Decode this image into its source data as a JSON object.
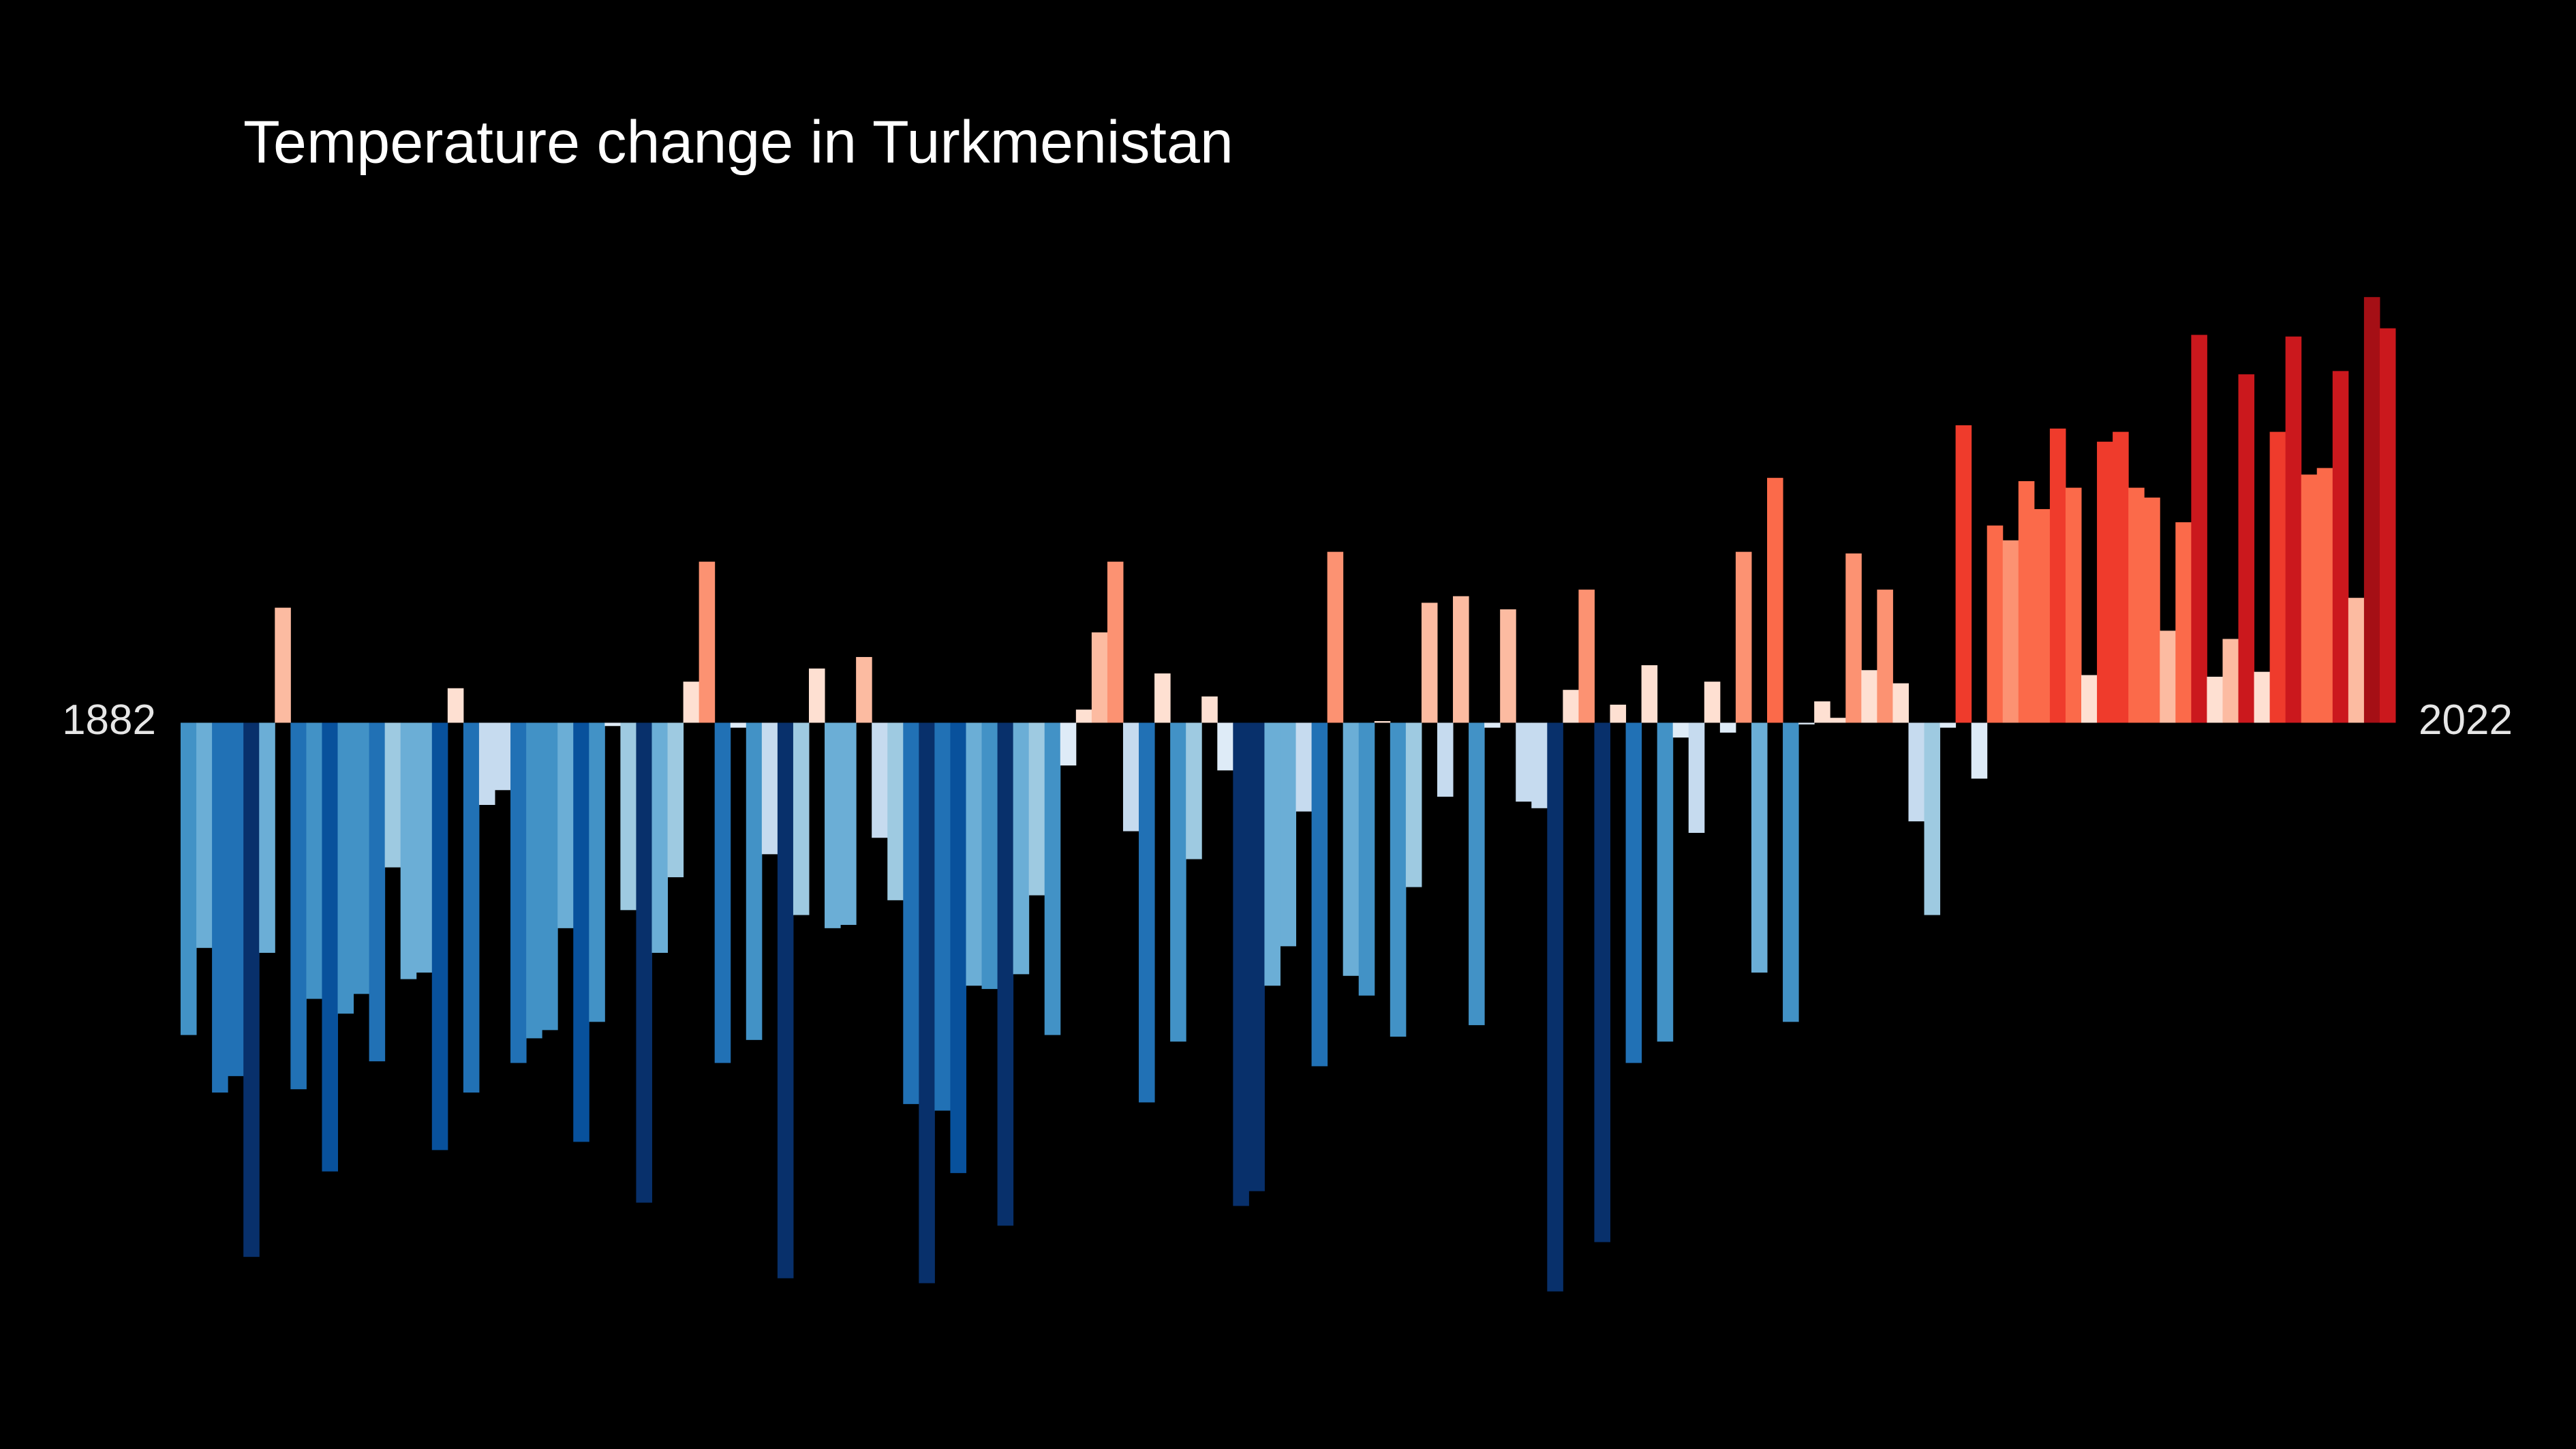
{
  "chart_data": {
    "type": "bar",
    "title": "Temperature change in Turkmenistan",
    "categories": [
      "1882",
      null,
      null,
      null,
      null,
      null,
      null,
      null,
      null,
      null,
      null,
      null,
      null,
      null,
      null,
      null,
      null,
      null,
      null,
      null,
      null,
      null,
      null,
      null,
      null,
      null,
      null,
      null,
      null,
      null,
      null,
      null,
      null,
      null,
      null,
      null,
      null,
      null,
      null,
      null,
      null,
      null,
      null,
      null,
      null,
      null,
      null,
      null,
      null,
      null,
      null,
      null,
      null,
      null,
      null,
      null,
      null,
      null,
      null,
      null,
      null,
      null,
      null,
      null,
      null,
      null,
      null,
      null,
      null,
      null,
      null,
      null,
      null,
      null,
      null,
      null,
      null,
      null,
      null,
      null,
      null,
      null,
      null,
      null,
      null,
      null,
      null,
      null,
      null,
      null,
      null,
      null,
      null,
      null,
      null,
      null,
      null,
      null,
      null,
      null,
      null,
      null,
      null,
      null,
      null,
      null,
      null,
      null,
      null,
      null,
      null,
      null,
      null,
      null,
      null,
      null,
      null,
      null,
      null,
      null,
      null,
      null,
      null,
      null,
      null,
      null,
      null,
      null,
      null,
      null,
      null,
      null,
      null,
      null,
      null,
      null,
      null,
      null,
      null,
      null,
      "2022"
    ],
    "values": [
      -1.9,
      -1.37,
      -2.25,
      -2.15,
      -3.25,
      -1.4,
      0.7,
      -2.23,
      -1.68,
      -2.73,
      -1.77,
      -1.65,
      -2.06,
      -0.88,
      -1.56,
      -1.52,
      -2.6,
      0.21,
      -2.25,
      -0.5,
      -0.41,
      -2.07,
      -1.92,
      -1.87,
      -1.25,
      -2.55,
      -1.82,
      -0.02,
      -1.14,
      -2.92,
      -1.4,
      -0.94,
      0.25,
      0.98,
      -2.07,
      -0.03,
      -1.93,
      -0.8,
      -3.38,
      -1.17,
      0.33,
      -1.25,
      -1.23,
      0.4,
      -0.7,
      -1.08,
      -2.32,
      -3.41,
      -2.36,
      -2.74,
      -1.6,
      -1.62,
      -3.06,
      -1.53,
      -1.05,
      -1.9,
      -0.26,
      0.08,
      0.55,
      0.98,
      -0.66,
      -2.31,
      0.3,
      -1.94,
      -0.83,
      0.16,
      -0.29,
      -2.94,
      -2.85,
      -1.6,
      -1.36,
      -0.54,
      -2.09,
      1.04,
      -1.54,
      -1.66,
      0.01,
      -1.91,
      -1.0,
      0.73,
      -0.45,
      0.77,
      -1.84,
      -0.03,
      0.69,
      -0.48,
      -0.52,
      -3.46,
      0.2,
      0.81,
      -3.16,
      0.11,
      -2.07,
      0.35,
      -1.94,
      -0.09,
      -0.67,
      0.25,
      -0.06,
      1.04,
      -1.52,
      1.49,
      -1.82,
      -0.01,
      0.13,
      0.03,
      1.03,
      0.32,
      0.81,
      0.24,
      -0.6,
      -1.17,
      -0.03,
      1.81,
      -0.34,
      1.2,
      1.11,
      1.47,
      1.3,
      1.79,
      1.43,
      0.29,
      1.71,
      1.77,
      1.43,
      1.37,
      0.56,
      1.22,
      2.36,
      0.28,
      0.51,
      2.12,
      0.31,
      1.77,
      2.35,
      1.51,
      1.55,
      2.14,
      0.76,
      2.59,
      2.4
    ],
    "ylim": [
      -4,
      3
    ],
    "color_limits": [
      -3.2,
      3.2
    ],
    "colormap": [
      "#08306b",
      "#08519c",
      "#2171b5",
      "#4292c6",
      "#6baed6",
      "#9ecae1",
      "#c6dbef",
      "#deebf7",
      "#fee0d2",
      "#fcbba1",
      "#fc9272",
      "#fb6a4a",
      "#ef3b2c",
      "#cb181d",
      "#a50f15",
      "#67001f"
    ]
  }
}
